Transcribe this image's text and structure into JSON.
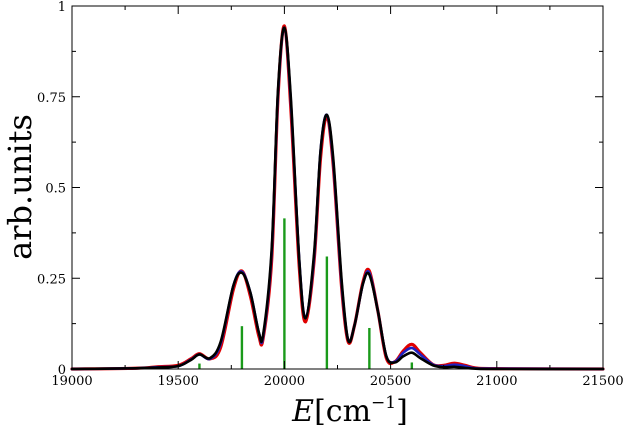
{
  "chart_data": {
    "type": "line",
    "title": "",
    "ylabel": "arb.units",
    "xlabel": {
      "variable": "E",
      "unit": "cm",
      "exponent": "−1"
    },
    "xlim": [
      19000,
      21500
    ],
    "ylim": [
      0,
      1
    ],
    "xticks": [
      19000,
      19500,
      20000,
      20500,
      21000,
      21500
    ],
    "xtick_labels": [
      "19000",
      "19500",
      "20000",
      "20500",
      "21000",
      "21500"
    ],
    "yticks": [
      0,
      0.25,
      0.5,
      0.75,
      1
    ],
    "ytick_labels": [
      "0",
      "0.25",
      "0.5",
      "0.75",
      "1"
    ],
    "grid": false,
    "legend": "none",
    "series": [
      {
        "style": "line",
        "color": "#e00000",
        "points": [
          [
            19000,
            0
          ],
          [
            19300,
            0.002
          ],
          [
            19400,
            0.006
          ],
          [
            19500,
            0.01
          ],
          [
            19560,
            0.028
          ],
          [
            19600,
            0.042
          ],
          [
            19650,
            0.028
          ],
          [
            19700,
            0.06
          ],
          [
            19760,
            0.22
          ],
          [
            19800,
            0.27
          ],
          [
            19840,
            0.2
          ],
          [
            19880,
            0.09
          ],
          [
            19900,
            0.085
          ],
          [
            19940,
            0.3
          ],
          [
            19970,
            0.75
          ],
          [
            20000,
            0.945
          ],
          [
            20030,
            0.72
          ],
          [
            20070,
            0.28
          ],
          [
            20100,
            0.13
          ],
          [
            20140,
            0.3
          ],
          [
            20170,
            0.58
          ],
          [
            20200,
            0.695
          ],
          [
            20230,
            0.56
          ],
          [
            20270,
            0.22
          ],
          [
            20300,
            0.075
          ],
          [
            20330,
            0.12
          ],
          [
            20370,
            0.24
          ],
          [
            20400,
            0.27
          ],
          [
            20440,
            0.16
          ],
          [
            20480,
            0.03
          ],
          [
            20520,
            0.02
          ],
          [
            20560,
            0.05
          ],
          [
            20600,
            0.068
          ],
          [
            20640,
            0.045
          ],
          [
            20700,
            0.012
          ],
          [
            20750,
            0.01
          ],
          [
            20800,
            0.016
          ],
          [
            20850,
            0.01
          ],
          [
            20900,
            0.003
          ],
          [
            21000,
            0.001
          ],
          [
            21500,
            0
          ]
        ]
      },
      {
        "style": "line",
        "color": "#2020c0",
        "points": [
          [
            19000,
            0
          ],
          [
            19300,
            0.002
          ],
          [
            19400,
            0.005
          ],
          [
            19500,
            0.008
          ],
          [
            19560,
            0.026
          ],
          [
            19600,
            0.04
          ],
          [
            19650,
            0.028
          ],
          [
            19700,
            0.07
          ],
          [
            19760,
            0.23
          ],
          [
            19800,
            0.268
          ],
          [
            19840,
            0.21
          ],
          [
            19880,
            0.1
          ],
          [
            19900,
            0.09
          ],
          [
            19940,
            0.32
          ],
          [
            19970,
            0.76
          ],
          [
            20000,
            0.94
          ],
          [
            20030,
            0.74
          ],
          [
            20070,
            0.3
          ],
          [
            20100,
            0.14
          ],
          [
            20140,
            0.31
          ],
          [
            20170,
            0.6
          ],
          [
            20200,
            0.7
          ],
          [
            20230,
            0.57
          ],
          [
            20270,
            0.23
          ],
          [
            20300,
            0.08
          ],
          [
            20330,
            0.12
          ],
          [
            20370,
            0.235
          ],
          [
            20400,
            0.265
          ],
          [
            20440,
            0.16
          ],
          [
            20480,
            0.035
          ],
          [
            20520,
            0.02
          ],
          [
            20560,
            0.045
          ],
          [
            20600,
            0.058
          ],
          [
            20640,
            0.04
          ],
          [
            20700,
            0.012
          ],
          [
            20750,
            0.008
          ],
          [
            20800,
            0.012
          ],
          [
            20850,
            0.008
          ],
          [
            20900,
            0.002
          ],
          [
            21000,
            0.001
          ],
          [
            21500,
            0
          ]
        ]
      },
      {
        "style": "line",
        "color": "#000000",
        "points": [
          [
            19000,
            0
          ],
          [
            19300,
            0.002
          ],
          [
            19400,
            0.004
          ],
          [
            19500,
            0.008
          ],
          [
            19560,
            0.025
          ],
          [
            19600,
            0.04
          ],
          [
            19650,
            0.03
          ],
          [
            19700,
            0.075
          ],
          [
            19760,
            0.23
          ],
          [
            19800,
            0.265
          ],
          [
            19840,
            0.21
          ],
          [
            19880,
            0.1
          ],
          [
            19900,
            0.095
          ],
          [
            19940,
            0.33
          ],
          [
            19970,
            0.77
          ],
          [
            20000,
            0.94
          ],
          [
            20030,
            0.75
          ],
          [
            20070,
            0.3
          ],
          [
            20100,
            0.14
          ],
          [
            20140,
            0.32
          ],
          [
            20170,
            0.6
          ],
          [
            20200,
            0.7
          ],
          [
            20230,
            0.58
          ],
          [
            20270,
            0.24
          ],
          [
            20300,
            0.08
          ],
          [
            20330,
            0.12
          ],
          [
            20370,
            0.235
          ],
          [
            20400,
            0.26
          ],
          [
            20440,
            0.16
          ],
          [
            20480,
            0.035
          ],
          [
            20520,
            0.018
          ],
          [
            20560,
            0.035
          ],
          [
            20600,
            0.045
          ],
          [
            20640,
            0.03
          ],
          [
            20700,
            0.01
          ],
          [
            20750,
            0.005
          ],
          [
            20800,
            0.006
          ],
          [
            20850,
            0.003
          ],
          [
            20900,
            0.001
          ],
          [
            21000,
            0
          ],
          [
            21500,
            0
          ]
        ]
      },
      {
        "style": "stick",
        "color": "#1a9a1a",
        "x": [
          19600,
          19800,
          20000,
          20200,
          20400,
          20600
        ],
        "values": [
          0.015,
          0.118,
          0.415,
          0.31,
          0.113,
          0.018
        ]
      }
    ]
  }
}
